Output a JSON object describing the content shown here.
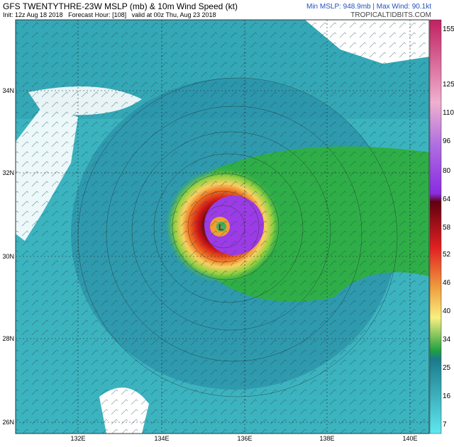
{
  "header": {
    "title": "GFS TWENTYTHRE-23W MSLP (mb) & 10m Wind Speed (kt)",
    "subtitle": "Init: 12z Aug 18 2018   Forecast Hour: [108]   valid at 00z Thu, Aug 23 2018",
    "stats": "Min MSLP: 948.9mb | Max Wind: 90.1kt",
    "site": "TROPICALTIDBITS.COM"
  },
  "colorbar": {
    "labels": [
      "155",
      "125",
      "110",
      "96",
      "80",
      "64",
      "58",
      "52",
      "46",
      "40",
      "34",
      "25",
      "16",
      "7"
    ]
  },
  "map": {
    "lat_labels": [
      "34N",
      "32N",
      "30N",
      "28N",
      "26N"
    ],
    "lon_labels": [
      "132E",
      "134E",
      "136E",
      "138E",
      "140E"
    ]
  }
}
